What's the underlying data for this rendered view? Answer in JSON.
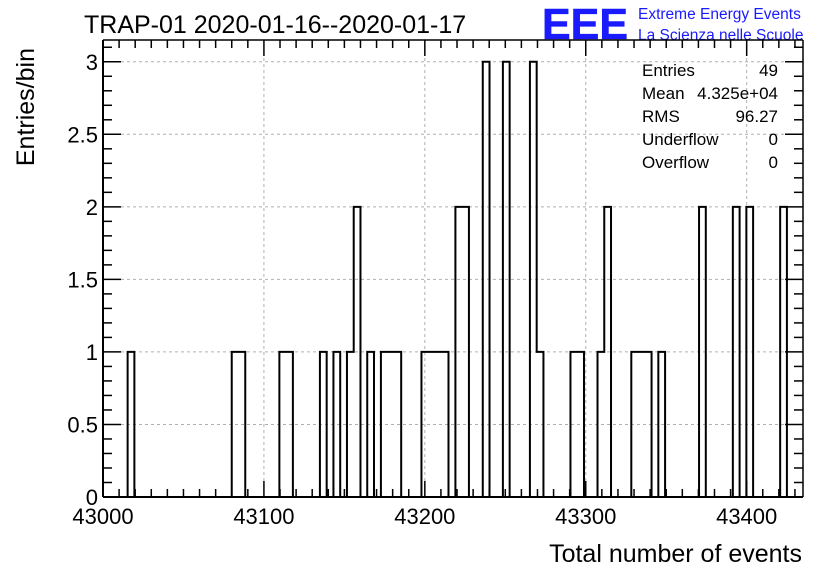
{
  "chart_data": {
    "type": "histogram",
    "title": "TRAP-01 2020-01-16--2020-01-17",
    "xlabel": "Total number of events",
    "ylabel": "Entries/bin",
    "xlim": [
      43000,
      43435
    ],
    "ylim": [
      0,
      3.15
    ],
    "bin_width": 4.2,
    "grid": true,
    "x_ticks": [
      43000,
      43100,
      43200,
      43300,
      43400
    ],
    "x_tick_labels": [
      "43000",
      "43100",
      "43200",
      "43300",
      "43400"
    ],
    "y_ticks": [
      0,
      0.5,
      1,
      1.5,
      2,
      2.5,
      3
    ],
    "y_tick_labels": [
      "0",
      "0.5",
      "1",
      "1.5",
      "2",
      "2.5",
      "3"
    ],
    "bins": [
      {
        "x": 43015.3,
        "y": 1
      },
      {
        "x": 43080.0,
        "y": 1
      },
      {
        "x": 43084.2,
        "y": 1
      },
      {
        "x": 43109.6,
        "y": 1
      },
      {
        "x": 43113.8,
        "y": 1
      },
      {
        "x": 43134.8,
        "y": 1
      },
      {
        "x": 43143.2,
        "y": 1
      },
      {
        "x": 43151.6,
        "y": 1
      },
      {
        "x": 43155.8,
        "y": 2
      },
      {
        "x": 43164.2,
        "y": 1
      },
      {
        "x": 43172.7,
        "y": 1
      },
      {
        "x": 43176.9,
        "y": 1
      },
      {
        "x": 43181.1,
        "y": 1
      },
      {
        "x": 43197.9,
        "y": 1
      },
      {
        "x": 43202.1,
        "y": 1
      },
      {
        "x": 43206.3,
        "y": 1
      },
      {
        "x": 43210.5,
        "y": 1
      },
      {
        "x": 43219.0,
        "y": 2
      },
      {
        "x": 43223.2,
        "y": 2
      },
      {
        "x": 43236.0,
        "y": 3
      },
      {
        "x": 43248.5,
        "y": 3
      },
      {
        "x": 43265.3,
        "y": 3
      },
      {
        "x": 43269.5,
        "y": 1
      },
      {
        "x": 43290.5,
        "y": 1
      },
      {
        "x": 43294.7,
        "y": 1
      },
      {
        "x": 43307.3,
        "y": 1
      },
      {
        "x": 43311.5,
        "y": 2
      },
      {
        "x": 43328.3,
        "y": 1
      },
      {
        "x": 43332.5,
        "y": 1
      },
      {
        "x": 43336.7,
        "y": 1
      },
      {
        "x": 43345.1,
        "y": 1
      },
      {
        "x": 43370.4,
        "y": 2
      },
      {
        "x": 43391.4,
        "y": 2
      },
      {
        "x": 43399.8,
        "y": 2
      },
      {
        "x": 43420.8,
        "y": 2
      }
    ],
    "stats": {
      "entries_label": "Entries",
      "entries": "49",
      "mean_label": "Mean",
      "mean": "4.325e+04",
      "rms_label": "RMS",
      "rms": "96.27",
      "underflow_label": "Underflow",
      "underflow": "0",
      "overflow_label": "Overflow",
      "overflow": "0"
    }
  },
  "logo": {
    "mark": "EEE",
    "line1": "Extreme Energy Events",
    "line2": "La Scienza nelle Scuole",
    "color": "#1a1aff"
  },
  "colors": {
    "line": "#000000",
    "grid": "#b0b0b0"
  }
}
